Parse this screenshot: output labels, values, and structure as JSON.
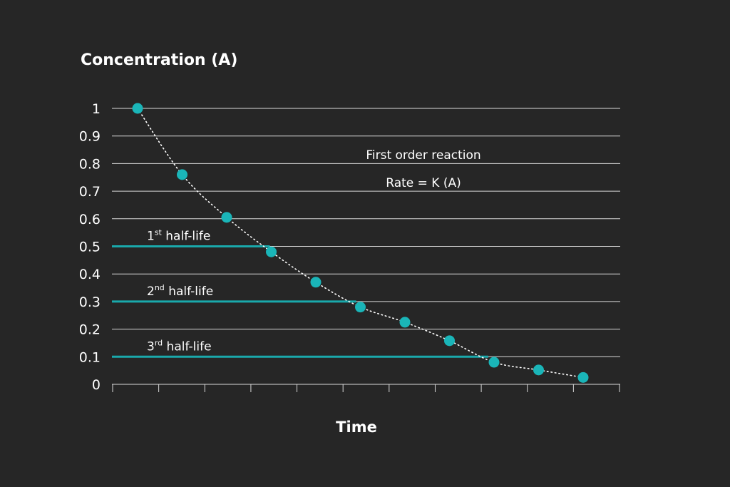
{
  "chart_data": {
    "type": "scatter",
    "title": "",
    "ylabel": "Concentration (A)",
    "xlabel": "Time",
    "ylim": [
      0,
      1
    ],
    "yticks": [
      "0",
      "0.1",
      "0.2",
      "0.3",
      "0.4",
      "0.5",
      "0.6",
      "0.7",
      "0.8",
      "0.9",
      "1"
    ],
    "x_tick_count": 12,
    "grid": true,
    "series": [
      {
        "values": [
          {
            "x": 0,
            "y": 1.0
          },
          {
            "x": 1,
            "y": 0.76
          },
          {
            "x": 2,
            "y": 0.605
          },
          {
            "x": 3,
            "y": 0.48
          },
          {
            "x": 4,
            "y": 0.37
          },
          {
            "x": 5,
            "y": 0.28
          },
          {
            "x": 6,
            "y": 0.225
          },
          {
            "x": 7,
            "y": 0.158
          },
          {
            "x": 8,
            "y": 0.08
          },
          {
            "x": 9,
            "y": 0.052
          },
          {
            "x": 10,
            "y": 0.025
          }
        ]
      }
    ],
    "fit_curve": "dotted",
    "annotations": [
      "First order reaction",
      "Rate = K (A)"
    ],
    "half_lives": [
      {
        "y": 0.5,
        "base": "1",
        "sup": "st",
        "text": " half-life"
      },
      {
        "y": 0.3,
        "base": "2",
        "sup": "nd",
        "text": " half-life"
      },
      {
        "y": 0.1,
        "base": "3",
        "sup": "rd",
        "text": " half-life"
      }
    ],
    "colors": {
      "background": "#262626",
      "point": "#1ab5b8",
      "half_life_line": "#1aa9ab",
      "grid": "#d9d9d9",
      "text": "#ffffff"
    }
  }
}
